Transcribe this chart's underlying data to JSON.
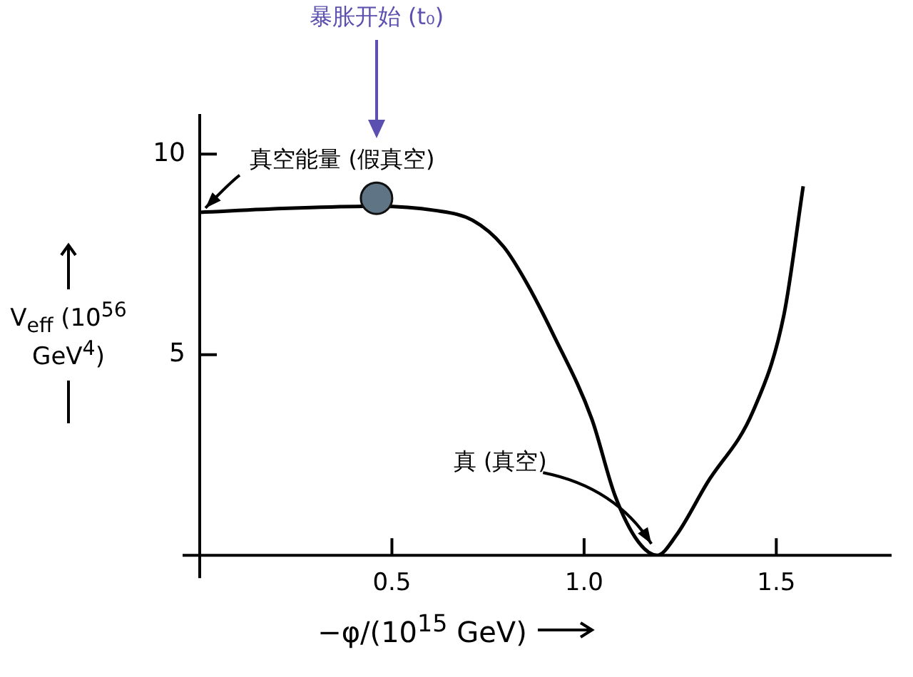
{
  "chart_data": {
    "type": "line",
    "xlabel": "−φ/(10$^{15}$ GeV)",
    "ylabel": "V$_{eff}$ (10$^{56}$ GeV$^{4}$)",
    "xlim": [
      0,
      1.8
    ],
    "ylim": [
      0,
      11
    ],
    "xticks": [
      0.5,
      {
        "value": 1,
        "label": "1.0"
      },
      1.5
    ],
    "yticks": [
      5,
      10
    ],
    "grid": false,
    "legend": false,
    "series": [
      {
        "color": "#000000",
        "x": [
          0,
          0.23,
          0.46,
          0.61,
          0.71,
          0.79,
          0.85,
          0.92,
          1.02,
          1.08,
          1.14,
          1.19,
          1.24,
          1.32,
          1.44,
          1.52,
          1.57
        ],
        "values": [
          8.55,
          8.65,
          8.7,
          8.6,
          8.35,
          7.7,
          6.8,
          5.5,
          3.4,
          1.5,
          0.35,
          0,
          0.5,
          1.8,
          3.6,
          6,
          9.2
        ]
      },
      {
        "type": "scatter",
        "color": "#5f7485",
        "x": [
          0.46
        ],
        "values": [
          8.9
        ]
      }
    ],
    "annotations": [
      "暴胀开始 (t₀)",
      {
        "text": "真空能量 (假真空)",
        "x": 0,
        "y": 8.55
      },
      {
        "text": "真 (真空)",
        "x": 1.19,
        "y": 0
      }
    ]
  }
}
